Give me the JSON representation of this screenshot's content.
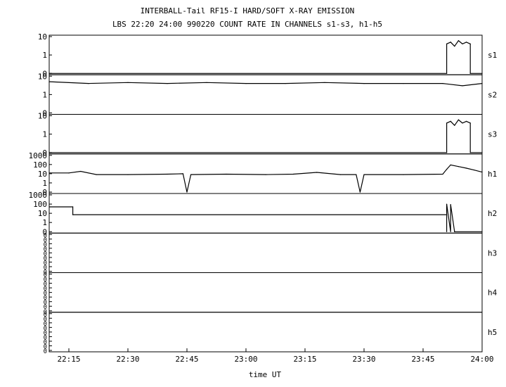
{
  "title_line1": "INTERBALL-Tail RF15-I HARD/SOFT X-RAY EMISSION",
  "title_line2": "LBS 22:20 24:00 990220  COUNT RATE IN CHANNELS s1-s3, h1-h5",
  "chart_data": {
    "type": "line",
    "xlabel": "time UT",
    "x_ticks": [
      "22:15",
      "22:30",
      "22:45",
      "23:00",
      "23:15",
      "23:30",
      "23:45",
      "24:00"
    ],
    "x_range": [
      "22:10",
      "24:00"
    ],
    "grid": false,
    "panels": [
      {
        "name": "s1",
        "y_tick_labels": [
          "10",
          "1",
          "0"
        ],
        "y_ticks": [
          10,
          1,
          0
        ],
        "scale": "log",
        "series": {
          "x": [
            "22:10",
            "23:51",
            "23:51",
            "23:52",
            "23:53",
            "23:54",
            "23:55",
            "23:56",
            "23:57",
            "23:57",
            "24:00"
          ],
          "y": [
            0,
            0,
            4,
            5,
            3,
            6,
            4,
            5,
            4,
            0,
            0
          ]
        }
      },
      {
        "name": "s2",
        "y_tick_labels": [
          "10",
          "1",
          "0"
        ],
        "y_ticks": [
          10,
          1,
          0
        ],
        "scale": "log",
        "series": {
          "x": [
            "22:10",
            "22:20",
            "22:30",
            "22:40",
            "22:50",
            "23:00",
            "23:10",
            "23:20",
            "23:30",
            "23:40",
            "23:50",
            "23:55",
            "24:00"
          ],
          "y": [
            5,
            4,
            4.5,
            4,
            4.5,
            4,
            4,
            4.5,
            4,
            4,
            4,
            3,
            4
          ]
        }
      },
      {
        "name": "s3",
        "y_tick_labels": [
          "10",
          "1",
          "0"
        ],
        "y_ticks": [
          10,
          1,
          0
        ],
        "scale": "log",
        "series": {
          "x": [
            "22:10",
            "23:51",
            "23:51",
            "23:52",
            "23:53",
            "23:54",
            "23:55",
            "23:56",
            "23:57",
            "23:57",
            "24:00"
          ],
          "y": [
            0,
            0,
            4,
            5,
            3,
            6,
            4,
            5,
            4,
            0,
            0
          ]
        }
      },
      {
        "name": "h1",
        "y_tick_labels": [
          "1000",
          "100",
          "10",
          "1",
          "0"
        ],
        "y_ticks": [
          1000,
          100,
          10,
          1,
          0
        ],
        "scale": "log",
        "series": {
          "x": [
            "22:10",
            "22:15",
            "22:18",
            "22:22",
            "22:30",
            "22:40",
            "22:44",
            "22:45",
            "22:45",
            "22:46",
            "22:55",
            "23:05",
            "23:12",
            "23:18",
            "23:24",
            "23:28",
            "23:29",
            "23:29",
            "23:30",
            "23:40",
            "23:50",
            "23:51",
            "23:52",
            "23:54",
            "23:56",
            "23:58",
            "24:00"
          ],
          "y": [
            12,
            12,
            18,
            8,
            8,
            9,
            10,
            0,
            0,
            8,
            9,
            8,
            9,
            14,
            8,
            8,
            0,
            0,
            8,
            8,
            9,
            30,
            90,
            60,
            40,
            25,
            15
          ]
        }
      },
      {
        "name": "h2",
        "y_tick_labels": [
          "1000",
          "100",
          "10",
          "1",
          "0"
        ],
        "y_ticks": [
          1000,
          100,
          10,
          1,
          0
        ],
        "scale": "log",
        "series": {
          "x": [
            "22:10",
            "22:16",
            "22:16",
            "23:51",
            "23:51",
            "23:51",
            "23:52",
            "23:52",
            "23:53",
            "23:53",
            "24:00"
          ],
          "y": [
            50,
            50,
            7,
            7,
            0,
            100,
            0,
            90,
            0,
            0,
            0
          ]
        }
      },
      {
        "name": "h3",
        "y_tick_labels": [
          "0",
          "0",
          "0",
          "0",
          "0",
          "0",
          "0",
          "0",
          "0"
        ],
        "scale": "log",
        "series": {
          "x": [],
          "y": []
        }
      },
      {
        "name": "h4",
        "y_tick_labels": [
          "0",
          "0",
          "0",
          "0",
          "0",
          "0",
          "0",
          "0",
          "0"
        ],
        "scale": "log",
        "series": {
          "x": [],
          "y": []
        }
      },
      {
        "name": "h5",
        "y_tick_labels": [
          "0",
          "0",
          "0",
          "0",
          "0",
          "0",
          "0",
          "0",
          "0"
        ],
        "scale": "log",
        "series": {
          "x": [],
          "y": []
        }
      }
    ]
  }
}
